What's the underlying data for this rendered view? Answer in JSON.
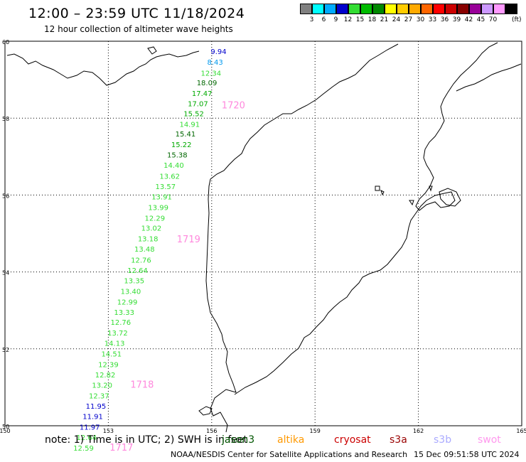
{
  "header": {
    "title": "12:00 – 23:59 UTC 11/18/2024",
    "subtitle": "12 hour collection of altimeter wave heights"
  },
  "legend": {
    "unit": "(ft)",
    "levels": [
      "3",
      "6",
      "9",
      "12",
      "15",
      "18",
      "21",
      "24",
      "27",
      "30",
      "33",
      "36",
      "39",
      "42",
      "45",
      "70"
    ],
    "colors": [
      "#808080",
      "#00ffff",
      "#00aaff",
      "#0000cc",
      "#33dd33",
      "#00bb00",
      "#008800",
      "#ffff00",
      "#ffcc00",
      "#ffaa00",
      "#ff6600",
      "#ff0000",
      "#cc0000",
      "#880000",
      "#990099",
      "#cc99ff",
      "#ff99ff",
      "#000000"
    ]
  },
  "map": {
    "lat_labels": [
      "60",
      "58",
      "56",
      "54",
      "52",
      "50"
    ],
    "lon_labels": [
      "150",
      "153",
      "156",
      "159",
      "162",
      "165"
    ],
    "lat_values": [
      60,
      58,
      56,
      54,
      52,
      50
    ],
    "lon_values": [
      150,
      153,
      156,
      159,
      162,
      165
    ],
    "lat_range": [
      50,
      60
    ],
    "lon_range": [
      150,
      165
    ],
    "grid": "dotted"
  },
  "track": [
    {
      "lat": 59.74,
      "lon": 156.2,
      "swh": "9.94",
      "color": "#0000cc"
    },
    {
      "lat": 59.46,
      "lon": 156.1,
      "swh": "8.43",
      "color": "#0099ee"
    },
    {
      "lat": 59.18,
      "lon": 155.98,
      "swh": "12.34",
      "color": "#33dd33"
    },
    {
      "lat": 58.93,
      "lon": 155.86,
      "swh": "18.09",
      "color": "#006600"
    },
    {
      "lat": 58.65,
      "lon": 155.72,
      "swh": "17.47",
      "color": "#00aa00"
    },
    {
      "lat": 58.38,
      "lon": 155.6,
      "swh": "17.07",
      "color": "#00aa00"
    },
    {
      "lat": 58.12,
      "lon": 155.48,
      "swh": "15.52",
      "color": "#00aa00"
    },
    {
      "lat": 57.85,
      "lon": 155.36,
      "swh": "14.91",
      "color": "#33dd33"
    },
    {
      "lat": 57.6,
      "lon": 155.24,
      "swh": "15.41",
      "color": "#006600"
    },
    {
      "lat": 57.32,
      "lon": 155.12,
      "swh": "15.22",
      "color": "#00aa00"
    },
    {
      "lat": 57.05,
      "lon": 155.0,
      "swh": "15.38",
      "color": "#006600"
    },
    {
      "lat": 56.78,
      "lon": 154.9,
      "swh": "14.40",
      "color": "#33dd33"
    },
    {
      "lat": 56.5,
      "lon": 154.78,
      "swh": "13.62",
      "color": "#33dd33"
    },
    {
      "lat": 56.23,
      "lon": 154.66,
      "swh": "13.57",
      "color": "#33dd33"
    },
    {
      "lat": 55.96,
      "lon": 154.55,
      "swh": "13.91",
      "color": "#33dd33"
    },
    {
      "lat": 55.68,
      "lon": 154.45,
      "swh": "13.99",
      "color": "#33dd33"
    },
    {
      "lat": 55.41,
      "lon": 154.35,
      "swh": "12.29",
      "color": "#33dd33"
    },
    {
      "lat": 55.15,
      "lon": 154.25,
      "swh": "13.02",
      "color": "#33dd33"
    },
    {
      "lat": 54.87,
      "lon": 154.15,
      "swh": "13.18",
      "color": "#33dd33"
    },
    {
      "lat": 54.6,
      "lon": 154.05,
      "swh": "13.48",
      "color": "#33dd33"
    },
    {
      "lat": 54.32,
      "lon": 153.95,
      "swh": "12.76",
      "color": "#33dd33"
    },
    {
      "lat": 54.05,
      "lon": 153.85,
      "swh": "12.64",
      "color": "#33dd33"
    },
    {
      "lat": 53.78,
      "lon": 153.75,
      "swh": "13.35",
      "color": "#33dd33"
    },
    {
      "lat": 53.5,
      "lon": 153.65,
      "swh": "13.40",
      "color": "#33dd33"
    },
    {
      "lat": 53.23,
      "lon": 153.55,
      "swh": "12.99",
      "color": "#33dd33"
    },
    {
      "lat": 52.96,
      "lon": 153.46,
      "swh": "13.33",
      "color": "#33dd33"
    },
    {
      "lat": 52.7,
      "lon": 153.36,
      "swh": "12.76",
      "color": "#33dd33"
    },
    {
      "lat": 52.42,
      "lon": 153.27,
      "swh": "13.72",
      "color": "#33dd33"
    },
    {
      "lat": 52.15,
      "lon": 153.18,
      "swh": "14.13",
      "color": "#33dd33"
    },
    {
      "lat": 51.88,
      "lon": 153.09,
      "swh": "14.51",
      "color": "#33dd33"
    },
    {
      "lat": 51.6,
      "lon": 153.0,
      "swh": "12.39",
      "color": "#33dd33"
    },
    {
      "lat": 51.33,
      "lon": 152.91,
      "swh": "12.82",
      "color": "#33dd33"
    },
    {
      "lat": 51.06,
      "lon": 152.82,
      "swh": "13.20",
      "color": "#33dd33"
    },
    {
      "lat": 50.79,
      "lon": 152.73,
      "swh": "12.37",
      "color": "#33dd33"
    },
    {
      "lat": 50.52,
      "lon": 152.64,
      "swh": "11.95",
      "color": "#0000cc"
    },
    {
      "lat": 50.25,
      "lon": 152.55,
      "swh": "11.91",
      "color": "#0000cc"
    },
    {
      "lat": 49.97,
      "lon": 152.46,
      "swh": "11.97",
      "color": "#0000cc"
    },
    {
      "lat": 49.7,
      "lon": 152.37,
      "swh": "12.64",
      "color": "#33dd33"
    },
    {
      "lat": 49.43,
      "lon": 152.28,
      "swh": "12.59",
      "color": "#33dd33"
    }
  ],
  "time_marks": [
    {
      "lat": 58.35,
      "lon": 156.0,
      "label": "1720"
    },
    {
      "lat": 54.86,
      "lon": 154.7,
      "label": "1719"
    },
    {
      "lat": 51.08,
      "lon": 153.35,
      "label": "1718"
    },
    {
      "lat": 49.45,
      "lon": 152.75,
      "label": "1717"
    }
  ],
  "time_mark_color": "#ff88dd",
  "footer": {
    "note": "note:  1) Time is in UTC;  2) SWH is in feet",
    "satellites": [
      {
        "name": "jason3",
        "color": "#005500"
      },
      {
        "name": "altika",
        "color": "#ff9900"
      },
      {
        "name": "cryosat",
        "color": "#cc0000"
      },
      {
        "name": "s3a",
        "color": "#990000"
      },
      {
        "name": "s3b",
        "color": "#aaaaff"
      },
      {
        "name": "swot",
        "color": "#ff99ee"
      }
    ],
    "credit": "NOAA/NESDIS Center for Satellite Applications and Research",
    "timestamp": "15 Dec 09:51:58 UTC 2024"
  }
}
